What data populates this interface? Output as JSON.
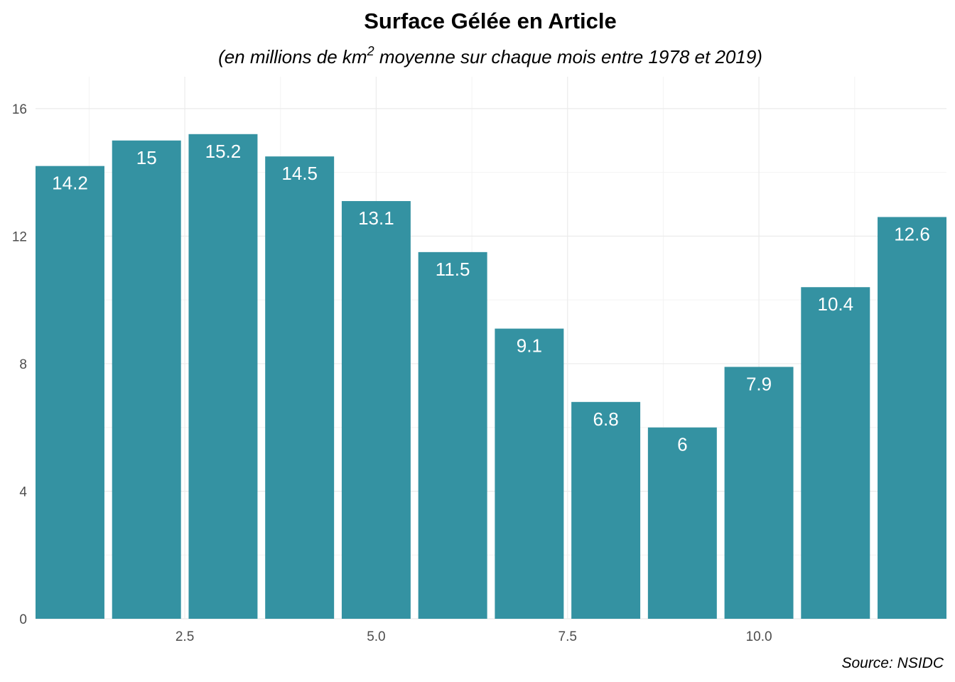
{
  "chart_data": {
    "type": "bar",
    "title": "Surface Gélée en Article",
    "subtitle": {
      "prefix": "(en millions de km",
      "superscript": "2",
      "suffix": " moyenne sur chaque mois entre 1978 et 2019)"
    },
    "caption": "Source: NSIDC",
    "x": [
      1,
      2,
      3,
      4,
      5,
      6,
      7,
      8,
      9,
      10,
      11,
      12
    ],
    "values": [
      14.2,
      15,
      15.2,
      14.5,
      13.1,
      11.5,
      9.1,
      6.8,
      6,
      7.9,
      10.4,
      12.6
    ],
    "data_labels": [
      "14.2",
      "15",
      "15.2",
      "14.5",
      "13.1",
      "11.5",
      "9.1",
      "6.8",
      "6",
      "7.9",
      "10.4",
      "12.6"
    ],
    "x_ticks": [
      2.5,
      5.0,
      7.5,
      10.0
    ],
    "x_tick_labels": [
      "2.5",
      "5.0",
      "7.5",
      "10.0"
    ],
    "y_ticks": [
      0,
      4,
      8,
      12,
      16
    ],
    "y_tick_labels": [
      "0",
      "4",
      "8",
      "12",
      "16"
    ],
    "xlim": [
      0.55,
      12.45
    ],
    "ylim": [
      0,
      17.0
    ],
    "xlabel": "",
    "ylabel": "",
    "grid": true,
    "legend": "none",
    "bar_color": "#3492A2",
    "label_color": "#FFFFFF"
  }
}
